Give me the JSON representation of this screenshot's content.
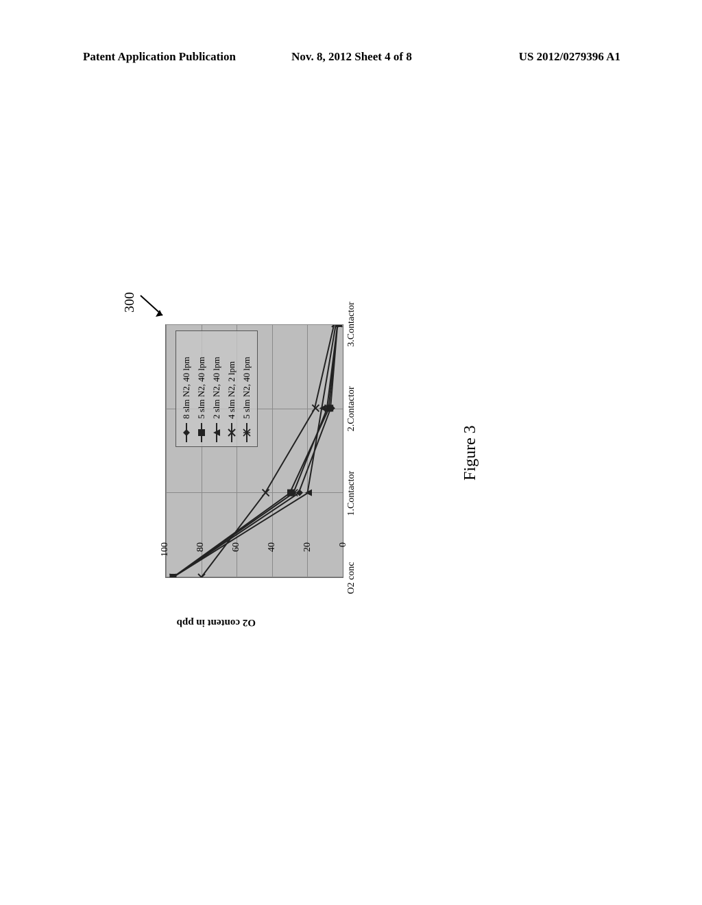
{
  "header": {
    "left": "Patent Application Publication",
    "center": "Nov. 8, 2012   Sheet 4 of 8",
    "right": "US 2012/0279396 A1"
  },
  "figure": {
    "reference_numeral": "300",
    "caption": "Figure 3"
  },
  "chart": {
    "type": "line",
    "yaxis_title": "O2 content in ppb",
    "ylim": [
      0,
      100
    ],
    "ytick_step": 20,
    "yticks": [
      0,
      20,
      40,
      60,
      80,
      100
    ],
    "x_categories": [
      "O2 conc",
      "1.Contactor",
      "2.Contactor",
      "3.Contactor"
    ],
    "background_color": "#bdbdbd",
    "grid_color": "#8a8a8a",
    "title_fontsize": 15,
    "tick_fontsize": 14,
    "legend_fontsize": 13,
    "line_color_default": "#222222",
    "line_width": 2,
    "series": [
      {
        "label": "8 slm N2, 40 lpm",
        "marker": "diamond",
        "color": "#222222",
        "values": [
          96,
          25,
          7,
          3
        ]
      },
      {
        "label": "5 slm N2, 40 lpm",
        "marker": "square",
        "color": "#222222",
        "values": [
          96,
          30,
          8,
          3
        ]
      },
      {
        "label": "2 slm N2, 40 lpm",
        "marker": "triangle",
        "color": "#222222",
        "values": [
          96,
          20,
          12,
          4
        ]
      },
      {
        "label": "4 slm N2, 2 lpm",
        "marker": "x",
        "color": "#222222",
        "values": [
          80,
          44,
          16,
          5
        ]
      },
      {
        "label": "5 slm N2, 40 lpm",
        "marker": "asterisk",
        "color": "#222222",
        "values": [
          96,
          28,
          9,
          3
        ]
      }
    ]
  }
}
